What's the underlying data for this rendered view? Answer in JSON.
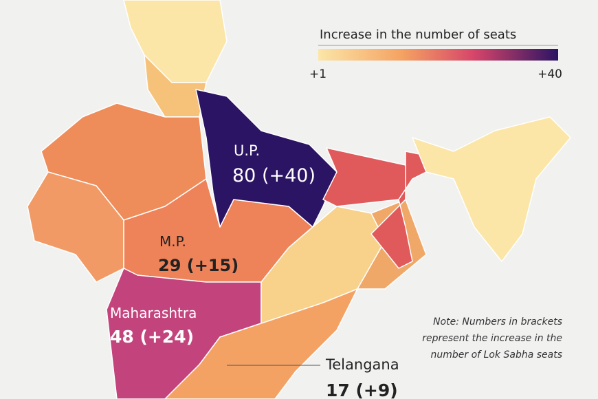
{
  "legend": {
    "title": "Increase in the number of seats",
    "min_label": "+1",
    "max_label": "+40"
  },
  "labels": [
    {
      "name": "U.P.",
      "value": "80 (+40)"
    },
    {
      "name": "M.P.",
      "value": "29 (+15)"
    },
    {
      "name": "Maharashtra",
      "value": "48 (+24)"
    },
    {
      "name": "Telangana",
      "value": "17 (+9)"
    }
  ],
  "note": "Note: Numbers in brackets represent the increase in the number of Lok Sabha seats"
}
